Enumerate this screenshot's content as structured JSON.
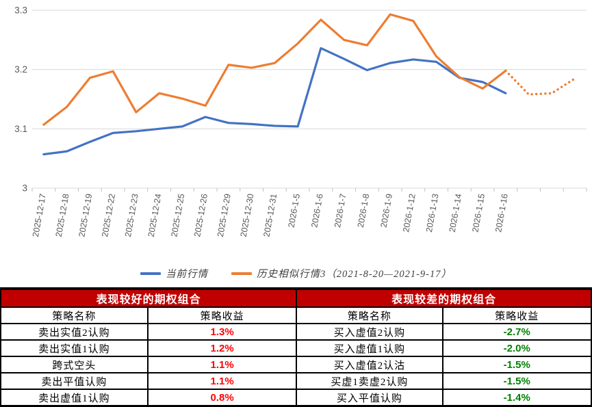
{
  "chart_data": {
    "type": "line",
    "title": "",
    "xlabel": "",
    "ylabel": "",
    "ylim": [
      3.0,
      3.3
    ],
    "yticks": [
      3.0,
      3.1,
      3.2,
      3.3
    ],
    "ytick_labels": [
      "3",
      "3.1",
      "3.2",
      "3.3"
    ],
    "grid": true,
    "legend_position": "bottom",
    "categories": [
      "2025-12-17",
      "2025-12-18",
      "2025-12-19",
      "2025-12-22",
      "2025-12-23",
      "2025-12-24",
      "2025-12-25",
      "2025-12-26",
      "2025-12-29",
      "2025-12-30",
      "2025-12-31",
      "2026-1-5",
      "2026-1-6",
      "2026-1-7",
      "2026-1-8",
      "2026-1-9",
      "2026-1-12",
      "2026-1-13",
      "2026-1-14",
      "2026-1-15",
      "2026-1-16"
    ],
    "series": [
      {
        "name": "当前行情",
        "color": "#4472C4",
        "line_style": "solid",
        "values": [
          3.057,
          3.062,
          3.078,
          3.093,
          3.096,
          3.1,
          3.104,
          3.12,
          3.11,
          3.108,
          3.105,
          3.104,
          3.236,
          3.218,
          3.199,
          3.211,
          3.217,
          3.213,
          3.186,
          3.179,
          3.16
        ]
      },
      {
        "name": "历史相似行情3（2021-8-20—2021-9-17）",
        "color": "#ED7D31",
        "line_style": "solid",
        "values": [
          3.107,
          3.137,
          3.186,
          3.197,
          3.128,
          3.16,
          3.151,
          3.139,
          3.208,
          3.203,
          3.211,
          3.244,
          3.284,
          3.25,
          3.241,
          3.293,
          3.282,
          3.222,
          3.187,
          3.168,
          3.198
        ],
        "dotted_extension": [
          3.158,
          3.16,
          3.185
        ]
      }
    ]
  },
  "table": {
    "header_bg": "#C00000",
    "header_text_color": "#FFFFFF",
    "left": {
      "title": "表现较好的期权组合",
      "col_headers": [
        "策略名称",
        "策略收益"
      ],
      "value_color": "#FF0000",
      "rows": [
        [
          "卖出实值2认购",
          "1.3%"
        ],
        [
          "卖出实值1认购",
          "1.2%"
        ],
        [
          "跨式空头",
          "1.1%"
        ],
        [
          "卖出平值认购",
          "1.1%"
        ],
        [
          "卖出虚值1认购",
          "0.8%"
        ]
      ]
    },
    "right": {
      "title": "表现较差的期权组合",
      "col_headers": [
        "策略名称",
        "策略收益"
      ],
      "value_color": "#008000",
      "rows": [
        [
          "买入虚值2认购",
          "-2.7%"
        ],
        [
          "买入虚值1认购",
          "-2.0%"
        ],
        [
          "买入虚值2认沽",
          "-1.5%"
        ],
        [
          "买虚1卖虚2认购",
          "-1.5%"
        ],
        [
          "买入平值认购",
          "-1.4%"
        ]
      ]
    }
  }
}
